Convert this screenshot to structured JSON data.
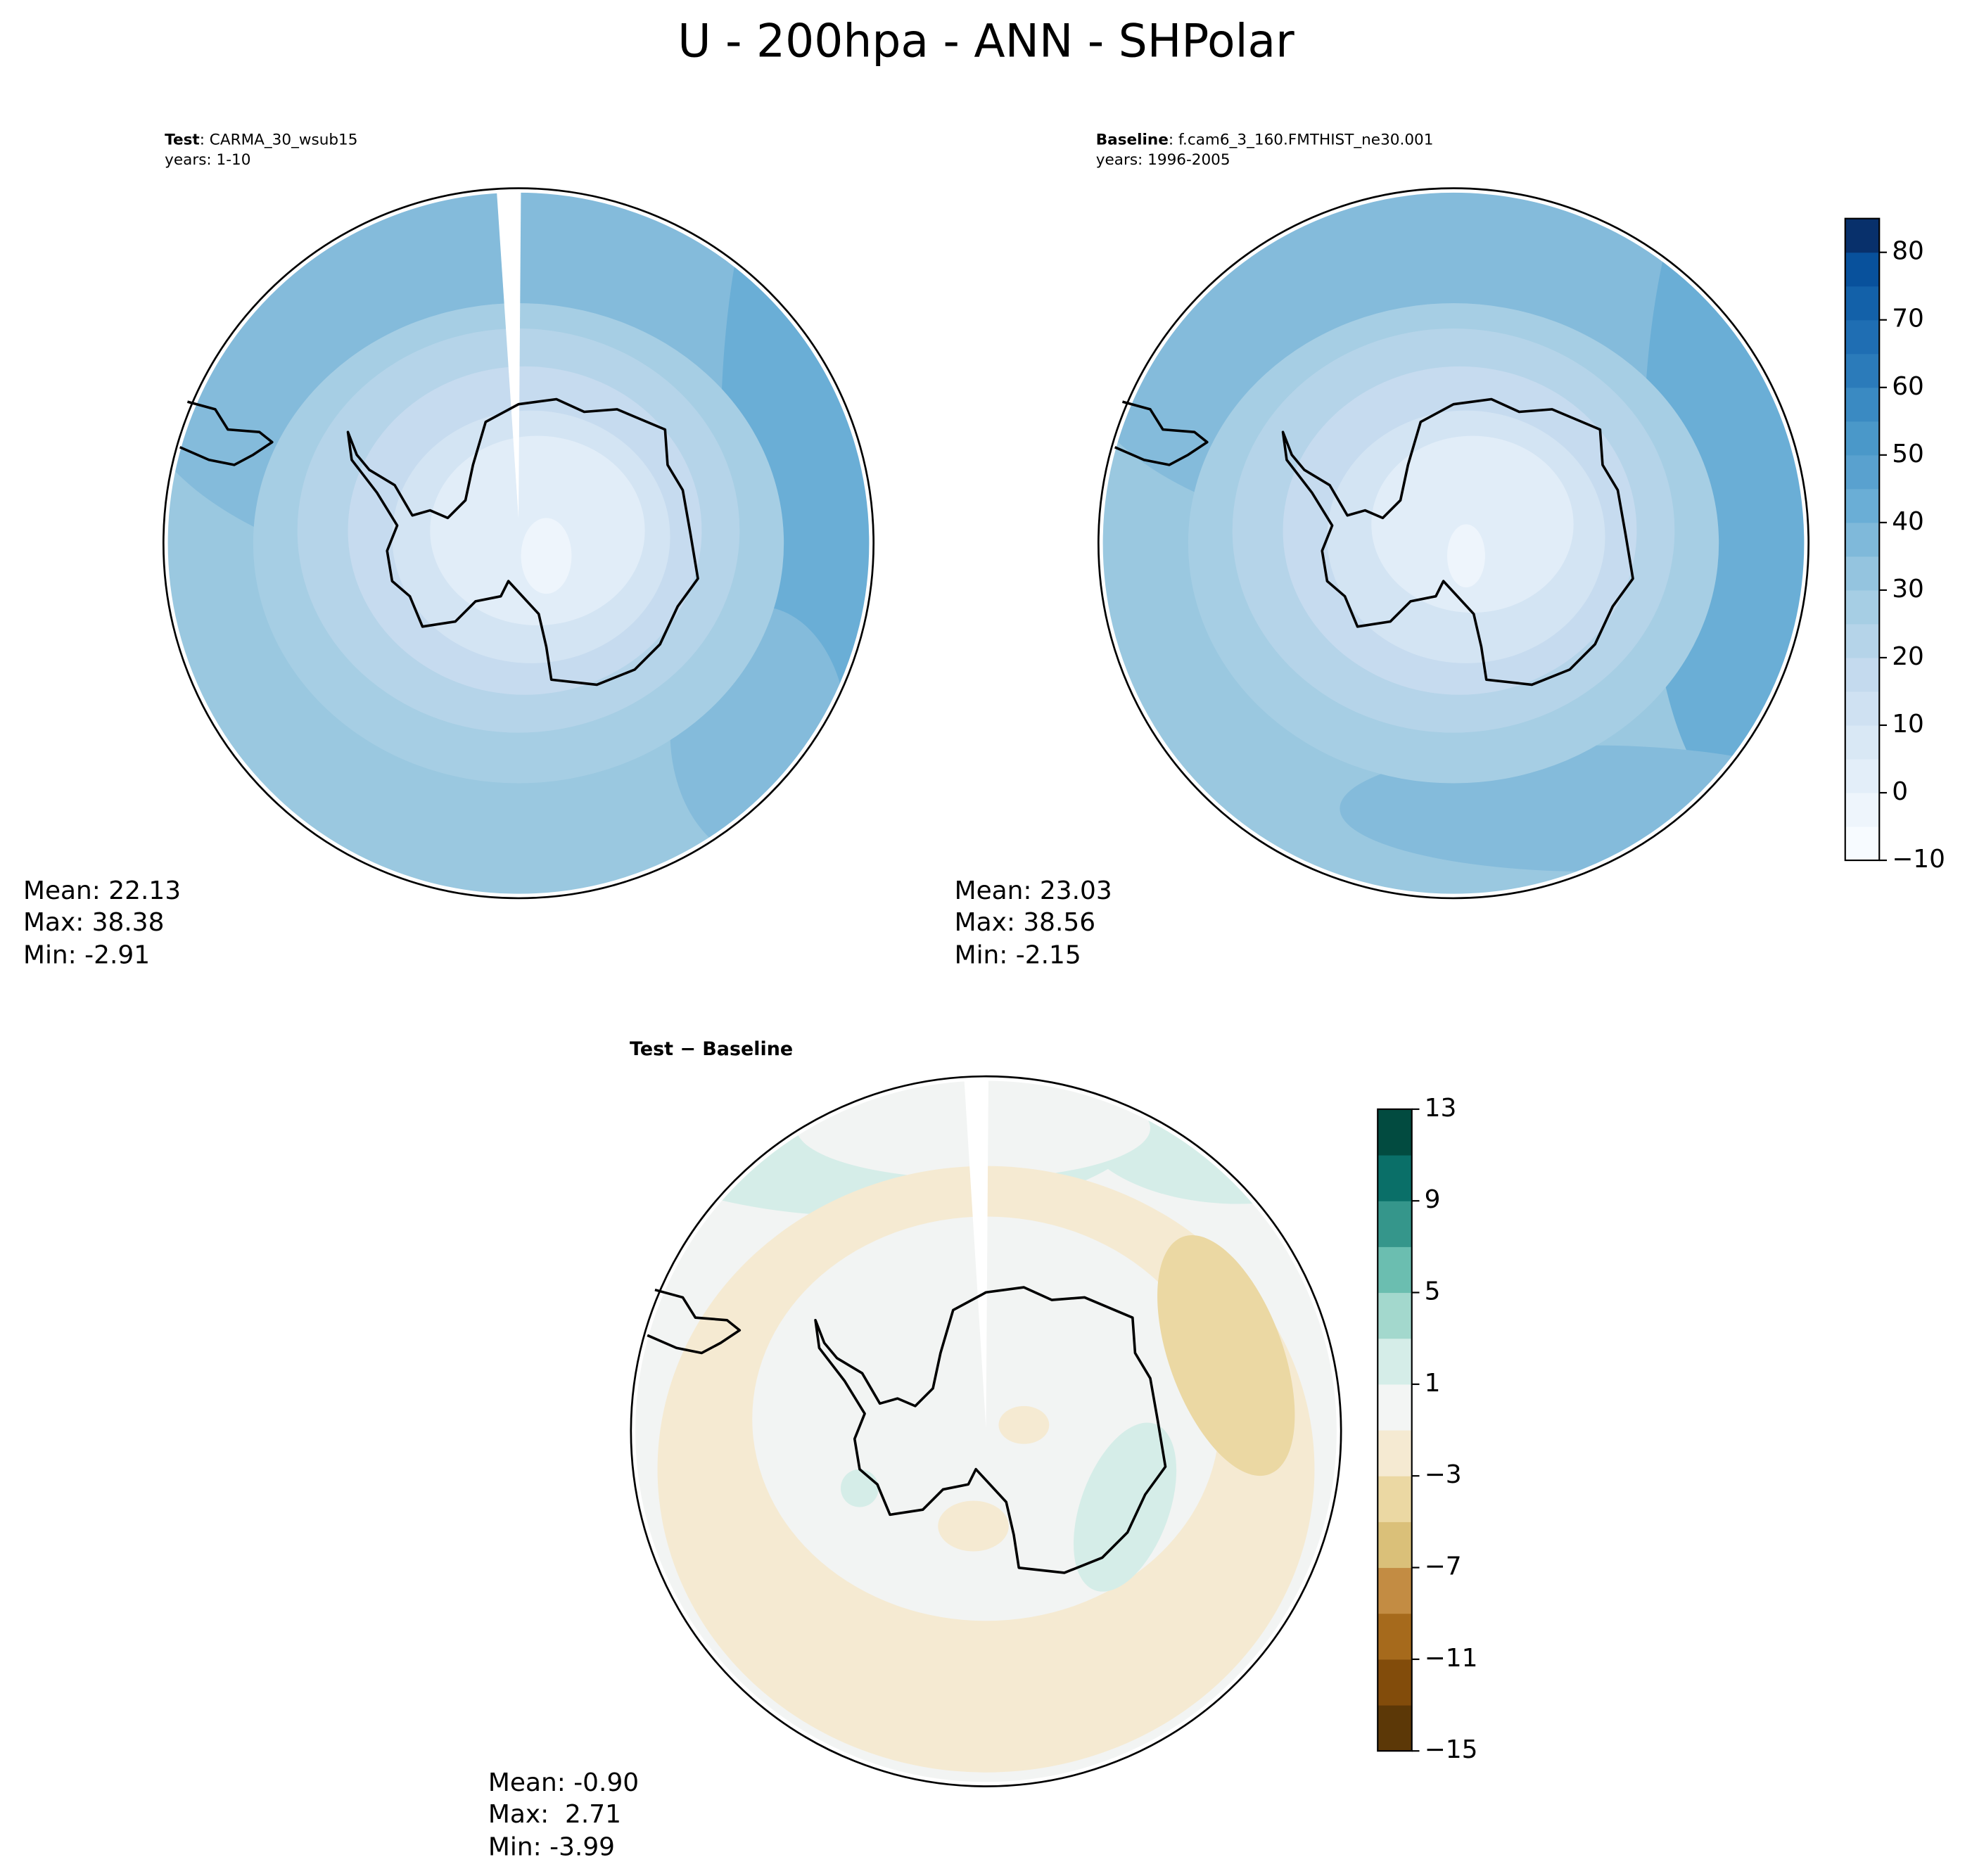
{
  "title": "U - 200hpa - ANN - SHPolar",
  "panels": [
    {
      "label_bold": "Test",
      "label_text": ": CARMA_30_wsub15",
      "years": "years: 1-10",
      "stats": [
        "Mean: 22.13",
        "Max: 38.38",
        "Min: -2.91"
      ]
    },
    {
      "label_bold": "Baseline",
      "label_text": ": f.cam6_3_160.FMTHIST_ne30.001",
      "years": "years: 1996-2005",
      "stats": [
        "Mean: 23.03",
        "Max: 38.56",
        "Min: -2.15"
      ]
    },
    {
      "label_bold": "Test − Baseline",
      "stats": [
        "Mean: -0.90",
        "Max:  2.71",
        "Min: -3.99"
      ]
    }
  ],
  "colorbars": [
    {
      "lim": [
        -10,
        85
      ],
      "ticks": [
        {
          "value": -10,
          "label": "−10"
        },
        0,
        10,
        20,
        30,
        40,
        50,
        60,
        70,
        80
      ],
      "colors": [
        "#f7fbff",
        "#eef5fc",
        "#e3eef9",
        "#d9e8f5",
        "#cfe1f2",
        "#c4daee",
        "#b5d4e9",
        "#a6cee4",
        "#94c4df",
        "#7fb9da",
        "#6aaed6",
        "#59a1cf",
        "#4a98c9",
        "#3a8ac2",
        "#2b7bba",
        "#1f6eb3",
        "#1361a9",
        "#08519c",
        "#08306b"
      ]
    },
    {
      "lim": [
        -15,
        13
      ],
      "ticks": [
        {
          "value": -15,
          "label": "−15"
        },
        {
          "value": -11,
          "label": "−11"
        },
        {
          "value": -7,
          "label": "−7"
        },
        {
          "value": -3,
          "label": "−3"
        },
        1,
        5,
        9,
        13
      ],
      "colors": [
        "#5c3807",
        "#824c0b",
        "#a66a1c",
        "#c38c43",
        "#dac079",
        "#ebd8a3",
        "#f5ead2",
        "#f3f5f4",
        "#d5ede8",
        "#a3d8cd",
        "#6bbeb0",
        "#35968b",
        "#0a6f68",
        "#024b40"
      ]
    }
  ]
}
